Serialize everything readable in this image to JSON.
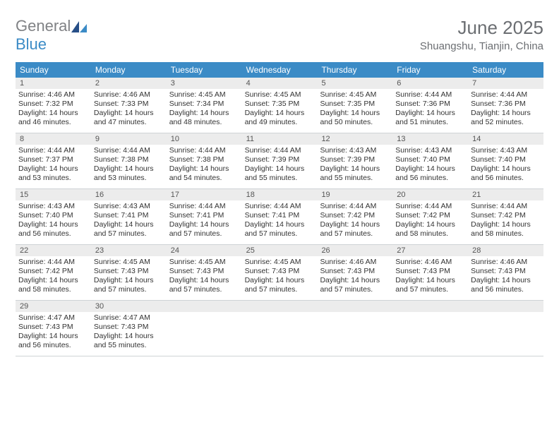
{
  "logo": {
    "part1": "General",
    "part2": "Blue"
  },
  "header": {
    "month": "June 2025",
    "location": "Shuangshu, Tianjin, China"
  },
  "dayNames": [
    "Sunday",
    "Monday",
    "Tuesday",
    "Wednesday",
    "Thursday",
    "Friday",
    "Saturday"
  ],
  "colors": {
    "header_bg": "#3b8bc6",
    "header_fg": "#ffffff",
    "daynum_bg": "#ececec",
    "text": "#333333",
    "muted": "#6b6e72",
    "rule": "#cfd3d6"
  },
  "label": {
    "sunrise": "Sunrise:",
    "sunset": "Sunset:",
    "daylight": "Daylight:"
  },
  "weeks": [
    [
      {
        "n": 1,
        "sr": "4:46 AM",
        "ss": "7:32 PM",
        "dl": "14 hours and 46 minutes."
      },
      {
        "n": 2,
        "sr": "4:46 AM",
        "ss": "7:33 PM",
        "dl": "14 hours and 47 minutes."
      },
      {
        "n": 3,
        "sr": "4:45 AM",
        "ss": "7:34 PM",
        "dl": "14 hours and 48 minutes."
      },
      {
        "n": 4,
        "sr": "4:45 AM",
        "ss": "7:35 PM",
        "dl": "14 hours and 49 minutes."
      },
      {
        "n": 5,
        "sr": "4:45 AM",
        "ss": "7:35 PM",
        "dl": "14 hours and 50 minutes."
      },
      {
        "n": 6,
        "sr": "4:44 AM",
        "ss": "7:36 PM",
        "dl": "14 hours and 51 minutes."
      },
      {
        "n": 7,
        "sr": "4:44 AM",
        "ss": "7:36 PM",
        "dl": "14 hours and 52 minutes."
      }
    ],
    [
      {
        "n": 8,
        "sr": "4:44 AM",
        "ss": "7:37 PM",
        "dl": "14 hours and 53 minutes."
      },
      {
        "n": 9,
        "sr": "4:44 AM",
        "ss": "7:38 PM",
        "dl": "14 hours and 53 minutes."
      },
      {
        "n": 10,
        "sr": "4:44 AM",
        "ss": "7:38 PM",
        "dl": "14 hours and 54 minutes."
      },
      {
        "n": 11,
        "sr": "4:44 AM",
        "ss": "7:39 PM",
        "dl": "14 hours and 55 minutes."
      },
      {
        "n": 12,
        "sr": "4:43 AM",
        "ss": "7:39 PM",
        "dl": "14 hours and 55 minutes."
      },
      {
        "n": 13,
        "sr": "4:43 AM",
        "ss": "7:40 PM",
        "dl": "14 hours and 56 minutes."
      },
      {
        "n": 14,
        "sr": "4:43 AM",
        "ss": "7:40 PM",
        "dl": "14 hours and 56 minutes."
      }
    ],
    [
      {
        "n": 15,
        "sr": "4:43 AM",
        "ss": "7:40 PM",
        "dl": "14 hours and 56 minutes."
      },
      {
        "n": 16,
        "sr": "4:43 AM",
        "ss": "7:41 PM",
        "dl": "14 hours and 57 minutes."
      },
      {
        "n": 17,
        "sr": "4:44 AM",
        "ss": "7:41 PM",
        "dl": "14 hours and 57 minutes."
      },
      {
        "n": 18,
        "sr": "4:44 AM",
        "ss": "7:41 PM",
        "dl": "14 hours and 57 minutes."
      },
      {
        "n": 19,
        "sr": "4:44 AM",
        "ss": "7:42 PM",
        "dl": "14 hours and 57 minutes."
      },
      {
        "n": 20,
        "sr": "4:44 AM",
        "ss": "7:42 PM",
        "dl": "14 hours and 58 minutes."
      },
      {
        "n": 21,
        "sr": "4:44 AM",
        "ss": "7:42 PM",
        "dl": "14 hours and 58 minutes."
      }
    ],
    [
      {
        "n": 22,
        "sr": "4:44 AM",
        "ss": "7:42 PM",
        "dl": "14 hours and 58 minutes."
      },
      {
        "n": 23,
        "sr": "4:45 AM",
        "ss": "7:43 PM",
        "dl": "14 hours and 57 minutes."
      },
      {
        "n": 24,
        "sr": "4:45 AM",
        "ss": "7:43 PM",
        "dl": "14 hours and 57 minutes."
      },
      {
        "n": 25,
        "sr": "4:45 AM",
        "ss": "7:43 PM",
        "dl": "14 hours and 57 minutes."
      },
      {
        "n": 26,
        "sr": "4:46 AM",
        "ss": "7:43 PM",
        "dl": "14 hours and 57 minutes."
      },
      {
        "n": 27,
        "sr": "4:46 AM",
        "ss": "7:43 PM",
        "dl": "14 hours and 57 minutes."
      },
      {
        "n": 28,
        "sr": "4:46 AM",
        "ss": "7:43 PM",
        "dl": "14 hours and 56 minutes."
      }
    ],
    [
      {
        "n": 29,
        "sr": "4:47 AM",
        "ss": "7:43 PM",
        "dl": "14 hours and 56 minutes."
      },
      {
        "n": 30,
        "sr": "4:47 AM",
        "ss": "7:43 PM",
        "dl": "14 hours and 55 minutes."
      },
      null,
      null,
      null,
      null,
      null
    ]
  ]
}
